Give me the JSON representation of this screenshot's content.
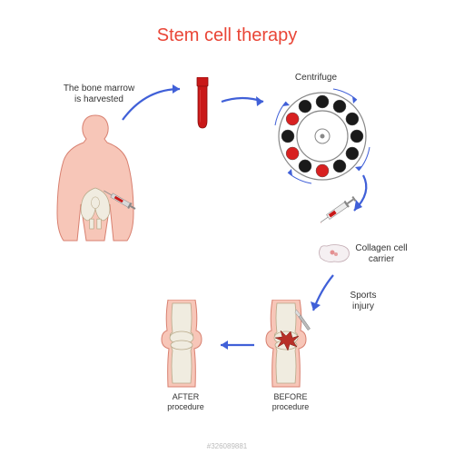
{
  "title": "Stem cell therapy",
  "labels": {
    "harvest": "The bone marrow\nis harvested",
    "centrifuge": "Centrifuge",
    "collagen": "Collagen cell\ncarrier",
    "sports": "Sports\ninjury",
    "after": "AFTER\nprocedure",
    "before": "BEFORE\nprocedure"
  },
  "colors": {
    "title": "#e94536",
    "arrow": "#4060d8",
    "blood": "#c91818",
    "blood_dark": "#8a0f0f",
    "skin": "#f7c6b8",
    "skin_outline": "#d88070",
    "bone": "#f0ece0",
    "bone_outline": "#b8a888",
    "centrifuge_red": "#d82020",
    "centrifuge_black": "#1a1a1a",
    "centrifuge_ring": "#888",
    "carrier_fill": "#f5f0f2",
    "carrier_outline": "#c0a8b0",
    "injury": "#b83028",
    "syringe_body": "#d8d8d8",
    "syringe_outline": "#888",
    "text": "#333333"
  },
  "centrifuge_data": {
    "outer_radius": 48,
    "inner_radius": 28,
    "slot_radius": 7,
    "slot_count": 12,
    "red_slots": [
      6,
      8,
      10
    ],
    "motion_arc_count": 4
  },
  "watermark": "#326089881"
}
